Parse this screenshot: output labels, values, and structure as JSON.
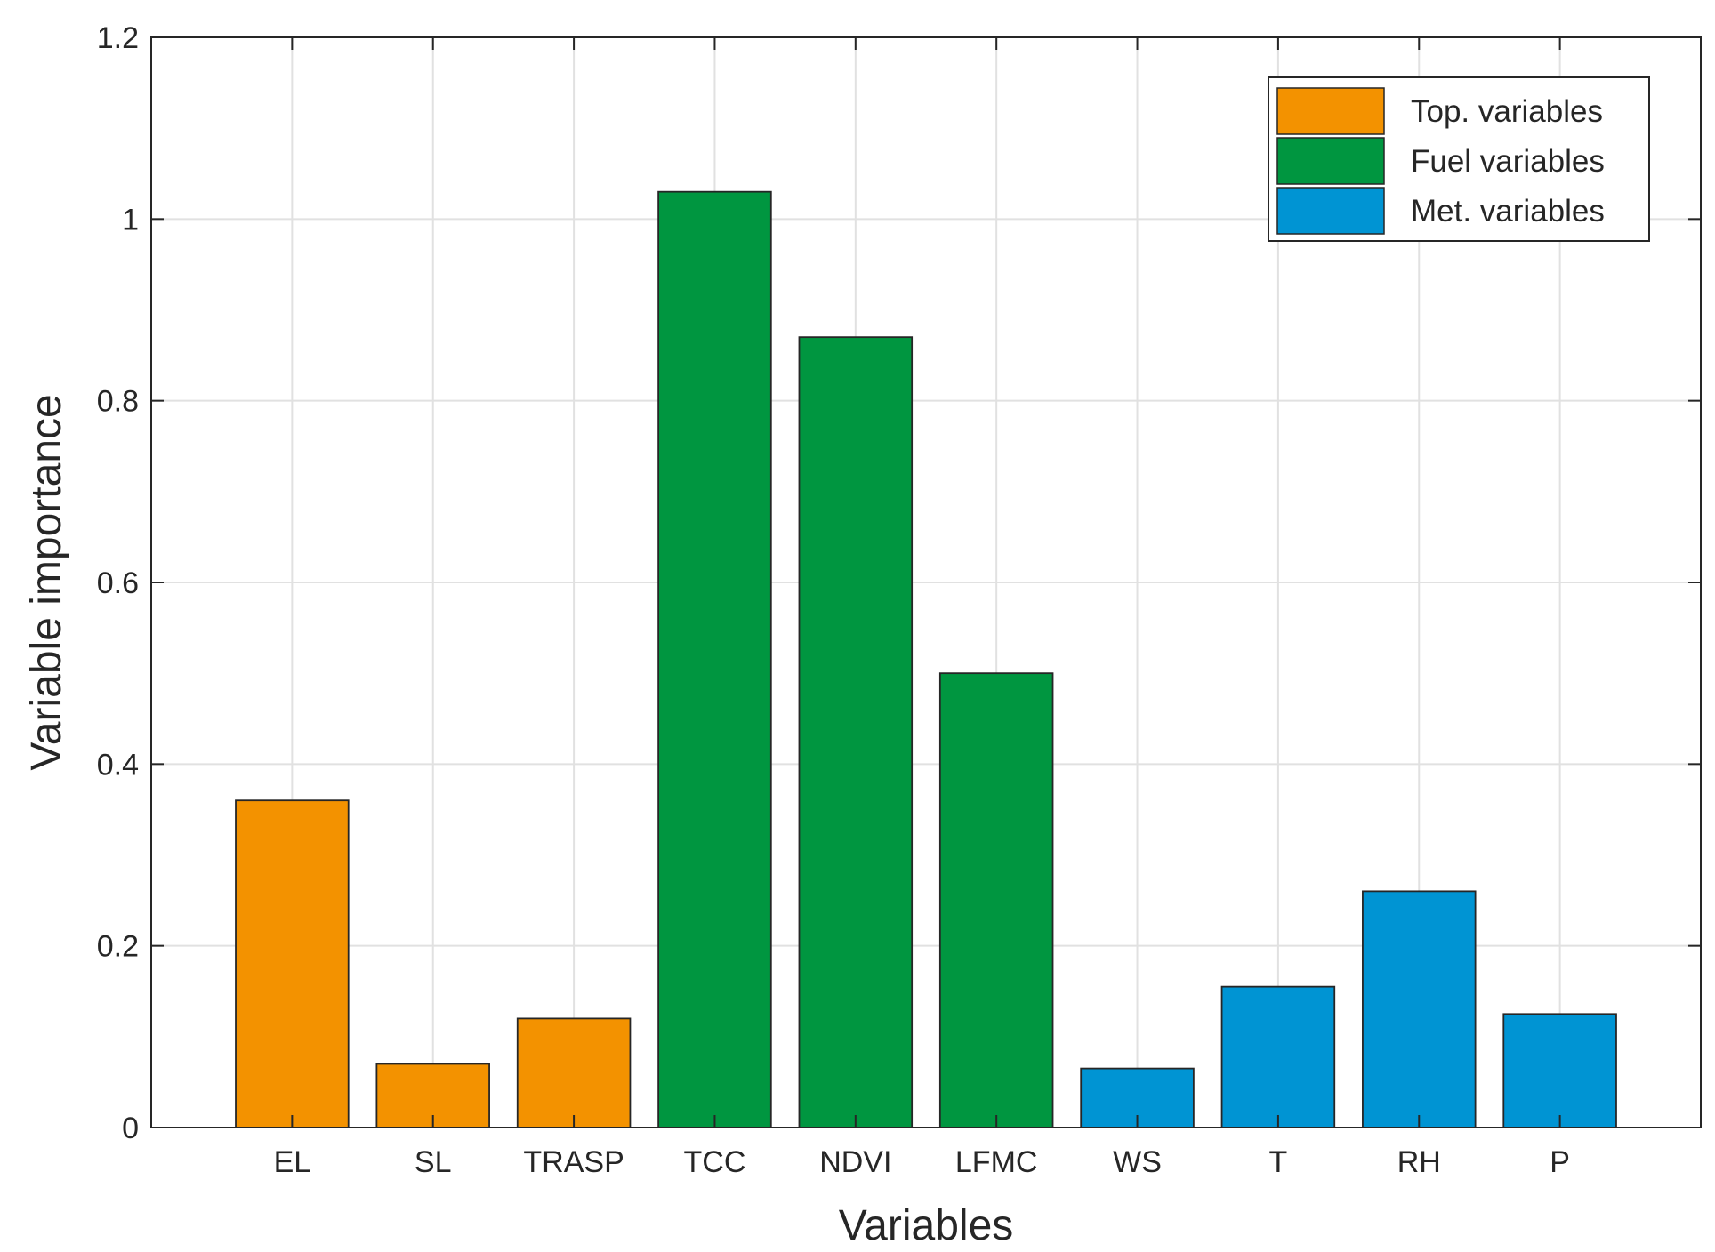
{
  "chart_data": {
    "type": "bar",
    "title": "",
    "xlabel": "Variables",
    "ylabel": "Variable importance",
    "ylim": [
      0,
      1.2
    ],
    "yticks": [
      0,
      0.2,
      0.4,
      0.6,
      0.8,
      1,
      1.2
    ],
    "ytick_labels": [
      "0",
      "0.2",
      "0.4",
      "0.6",
      "0.8",
      "1",
      "1.2"
    ],
    "grid": true,
    "legend_position": "top-right",
    "categories": [
      "EL",
      "SL",
      "TRASP",
      "TCC",
      "NDVI",
      "LFMC",
      "WS",
      "T",
      "RH",
      "P"
    ],
    "values": [
      0.36,
      0.07,
      0.12,
      1.03,
      0.87,
      0.5,
      0.065,
      0.155,
      0.26,
      0.125
    ],
    "groups": [
      "top",
      "top",
      "top",
      "fuel",
      "fuel",
      "fuel",
      "met",
      "met",
      "met",
      "met"
    ],
    "series": [
      {
        "key": "top",
        "name": "Top. variables",
        "color": "#F39200"
      },
      {
        "key": "fuel",
        "name": "Fuel variables",
        "color": "#009640"
      },
      {
        "key": "met",
        "name": "Met. variables",
        "color": "#0094D3"
      }
    ]
  }
}
